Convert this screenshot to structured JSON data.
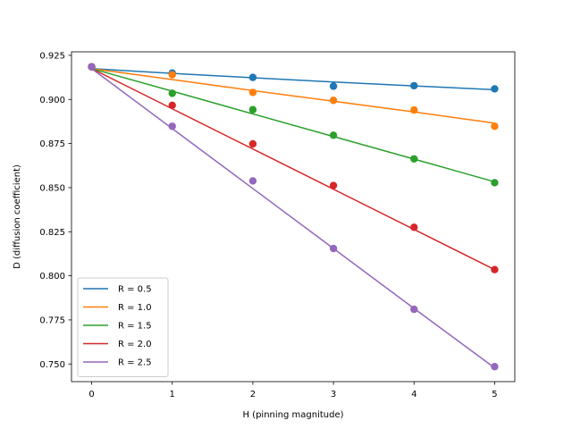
{
  "chart_data": {
    "type": "scatter",
    "title": "",
    "xlabel": "H (pinning magnitude)",
    "ylabel": "D (diffusion coefficient)",
    "xlim": [
      -0.25,
      5.25
    ],
    "ylim": [
      0.74,
      0.927
    ],
    "xticks": [
      0,
      1,
      2,
      3,
      4,
      5
    ],
    "xtick_labels": [
      "0",
      "1",
      "2",
      "3",
      "4",
      "5"
    ],
    "yticks": [
      0.75,
      0.775,
      0.8,
      0.825,
      0.85,
      0.875,
      0.9,
      0.925
    ],
    "ytick_labels": [
      "0.750",
      "0.775",
      "0.800",
      "0.825",
      "0.850",
      "0.875",
      "0.900",
      "0.925"
    ],
    "grid": false,
    "legend_position": "lower-left",
    "x": [
      0,
      1,
      2,
      3,
      4,
      5
    ],
    "series": [
      {
        "name": "R = 0.5",
        "color": "#1f77b4",
        "points": [
          0.9185,
          0.915,
          0.9125,
          0.9075,
          0.9078,
          0.906
        ],
        "fit": [
          0.9175,
          0.9148,
          0.9123,
          0.9099,
          0.9077,
          0.9055
        ]
      },
      {
        "name": "R = 1.0",
        "color": "#ff7f0e",
        "points": [
          0.9185,
          0.914,
          0.904,
          0.8995,
          0.894,
          0.8848
        ],
        "fit": [
          0.9175,
          0.9113,
          0.905,
          0.899,
          0.8929,
          0.8866
        ]
      },
      {
        "name": "R = 1.5",
        "color": "#2ca02c",
        "points": [
          0.9185,
          0.9035,
          0.8942,
          0.8797,
          0.8663,
          0.8528
        ],
        "fit": [
          0.9175,
          0.9047,
          0.8918,
          0.879,
          0.8662,
          0.8533
        ]
      },
      {
        "name": "R = 2.0",
        "color": "#d62728",
        "points": [
          0.9185,
          0.8967,
          0.8748,
          0.8512,
          0.8275,
          0.8035
        ],
        "fit": [
          0.9175,
          0.8947,
          0.8719,
          0.8491,
          0.8263,
          0.8035
        ]
      },
      {
        "name": "R = 2.5",
        "color": "#9467bd",
        "points": [
          0.9185,
          0.8848,
          0.8538,
          0.8155,
          0.781,
          0.7485
        ],
        "fit": [
          0.9175,
          0.8835,
          0.8495,
          0.8155,
          0.7815,
          0.7478
        ]
      }
    ]
  }
}
